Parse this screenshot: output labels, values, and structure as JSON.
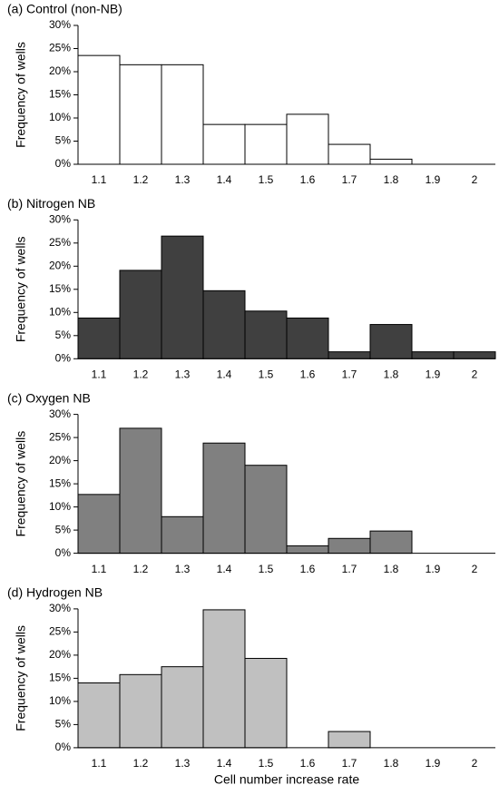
{
  "chart_data": [
    {
      "type": "bar",
      "title": "(a) Control (non-NB)",
      "ylabel": "Frequency of wells",
      "color": "#ffffff",
      "categories": [
        "1.1",
        "1.2",
        "1.3",
        "1.4",
        "1.5",
        "1.6",
        "1.7",
        "1.8",
        "1.9",
        "2"
      ],
      "values": [
        23.5,
        21.5,
        21.5,
        8.6,
        8.6,
        10.8,
        4.3,
        1.1,
        0,
        0
      ],
      "ylim": [
        0,
        30
      ],
      "yticks": [
        {
          "value": 0,
          "label": "0%"
        },
        {
          "value": 5,
          "label": "5%"
        },
        {
          "value": 10,
          "label": "10%"
        },
        {
          "value": 15,
          "label": "15%"
        },
        {
          "value": 20,
          "label": "20%"
        },
        {
          "value": 25,
          "label": "25%"
        },
        {
          "value": 30,
          "label": "30%"
        }
      ]
    },
    {
      "type": "bar",
      "title": "(b) Nitrogen NB",
      "ylabel": "Frequency of wells",
      "color": "#404040",
      "categories": [
        "1.1",
        "1.2",
        "1.3",
        "1.4",
        "1.5",
        "1.6",
        "1.7",
        "1.8",
        "1.9",
        "2"
      ],
      "values": [
        8.8,
        19.1,
        26.5,
        14.7,
        10.3,
        8.8,
        1.5,
        7.4,
        1.5,
        1.5
      ],
      "ylim": [
        0,
        30
      ],
      "yticks": [
        {
          "value": 0,
          "label": "0%"
        },
        {
          "value": 5,
          "label": "5%"
        },
        {
          "value": 10,
          "label": "10%"
        },
        {
          "value": 15,
          "label": "15%"
        },
        {
          "value": 20,
          "label": "20%"
        },
        {
          "value": 25,
          "label": "25%"
        },
        {
          "value": 30,
          "label": "30%"
        }
      ]
    },
    {
      "type": "bar",
      "title": "(c) Oxygen NB",
      "ylabel": "Frequency of wells",
      "color": "#808080",
      "categories": [
        "1.1",
        "1.2",
        "1.3",
        "1.4",
        "1.5",
        "1.6",
        "1.7",
        "1.8",
        "1.9",
        "2"
      ],
      "values": [
        12.7,
        27.0,
        7.9,
        23.8,
        19.0,
        1.6,
        3.2,
        4.8,
        0,
        0
      ],
      "ylim": [
        0,
        30
      ],
      "yticks": [
        {
          "value": 0,
          "label": "0%"
        },
        {
          "value": 5,
          "label": "5%"
        },
        {
          "value": 10,
          "label": "10%"
        },
        {
          "value": 15,
          "label": "15%"
        },
        {
          "value": 20,
          "label": "20%"
        },
        {
          "value": 25,
          "label": "25%"
        },
        {
          "value": 30,
          "label": "30%"
        }
      ]
    },
    {
      "type": "bar",
      "title": "(d) Hydrogen NB",
      "ylabel": "Frequency of wells",
      "xlabel": "Cell number increase rate",
      "color": "#c0c0c0",
      "categories": [
        "1.1",
        "1.2",
        "1.3",
        "1.4",
        "1.5",
        "1.6",
        "1.7",
        "1.8",
        "1.9",
        "2"
      ],
      "values": [
        14.0,
        15.8,
        17.5,
        29.8,
        19.3,
        0,
        3.5,
        0,
        0,
        0
      ],
      "ylim": [
        0,
        30
      ],
      "yticks": [
        {
          "value": 0,
          "label": "0%"
        },
        {
          "value": 5,
          "label": "5%"
        },
        {
          "value": 10,
          "label": "10%"
        },
        {
          "value": 15,
          "label": "15%"
        },
        {
          "value": 20,
          "label": "20%"
        },
        {
          "value": 25,
          "label": "25%"
        },
        {
          "value": 30,
          "label": "30%"
        }
      ]
    }
  ]
}
